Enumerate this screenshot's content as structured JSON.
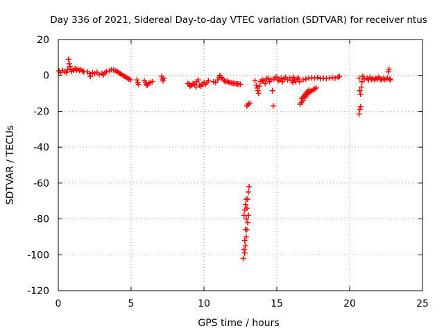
{
  "chart_data": {
    "type": "scatter",
    "title": "Day 336 of 2021, Sidereal Day-to-day VTEC variation (SDTVAR) for receiver ntus",
    "xlabel": "GPS time / hours",
    "ylabel": "SDTVAR / TECUs",
    "xlim": [
      0,
      25
    ],
    "ylim": [
      -120,
      20
    ],
    "xticks": [
      "0",
      "5",
      "10",
      "15",
      "20",
      "25"
    ],
    "yticks": [
      "20",
      "0",
      "-20",
      "-40",
      "-60",
      "-80",
      "-100",
      "-120"
    ],
    "grid": true,
    "marker": "plus",
    "series": [
      {
        "name": "SDTVAR",
        "color": "#ff0000",
        "points": [
          [
            0.05,
            2.5
          ],
          [
            0.15,
            1.5
          ],
          [
            0.3,
            2.8
          ],
          [
            0.45,
            2.0
          ],
          [
            0.55,
            1.6
          ],
          [
            0.65,
            3.2
          ],
          [
            0.7,
            9.0
          ],
          [
            0.75,
            6.5
          ],
          [
            0.8,
            5.0
          ],
          [
            0.85,
            3.5
          ],
          [
            0.9,
            2.2
          ],
          [
            1.05,
            2.8
          ],
          [
            1.15,
            3.8
          ],
          [
            1.25,
            3.0
          ],
          [
            1.35,
            3.5
          ],
          [
            1.45,
            2.7
          ],
          [
            1.55,
            3.2
          ],
          [
            1.65,
            2.5
          ],
          [
            1.75,
            2.0
          ],
          [
            2.0,
            2.0
          ],
          [
            2.15,
            1.0
          ],
          [
            2.2,
            -0.5
          ],
          [
            2.35,
            1.5
          ],
          [
            2.5,
            1.0
          ],
          [
            2.65,
            1.8
          ],
          [
            2.8,
            0.5
          ],
          [
            3.0,
            1.2
          ],
          [
            3.1,
            0.3
          ],
          [
            3.2,
            1.5
          ],
          [
            3.3,
            2.2
          ],
          [
            3.5,
            2.5
          ],
          [
            3.65,
            3.2
          ],
          [
            3.8,
            3.0
          ],
          [
            3.95,
            2.6
          ],
          [
            4.05,
            2.0
          ],
          [
            4.15,
            1.5
          ],
          [
            4.25,
            1.0
          ],
          [
            4.35,
            0.5
          ],
          [
            4.45,
            0.0
          ],
          [
            4.55,
            -0.5
          ],
          [
            4.65,
            -1.0
          ],
          [
            4.75,
            -1.5
          ],
          [
            4.85,
            -2.0
          ],
          [
            4.95,
            -2.5
          ],
          [
            5.4,
            -2.5
          ],
          [
            5.45,
            -4.0
          ],
          [
            5.5,
            -5.0
          ],
          [
            5.9,
            -3.0
          ],
          [
            6.0,
            -4.0
          ],
          [
            6.05,
            -5.0
          ],
          [
            6.1,
            -5.5
          ],
          [
            6.2,
            -4.5
          ],
          [
            6.3,
            -4.0
          ],
          [
            6.45,
            -3.5
          ],
          [
            7.1,
            -0.5
          ],
          [
            7.15,
            -2.0
          ],
          [
            7.2,
            -3.0
          ],
          [
            7.25,
            -1.5
          ],
          [
            8.9,
            -4.5
          ],
          [
            9.0,
            -5.0
          ],
          [
            9.05,
            -6.0
          ],
          [
            9.15,
            -5.5
          ],
          [
            9.25,
            -4.5
          ],
          [
            9.35,
            -5.0
          ],
          [
            9.45,
            -6.5
          ],
          [
            9.5,
            -3.5
          ],
          [
            9.6,
            -2.5
          ],
          [
            9.7,
            -5.5
          ],
          [
            9.8,
            -6.0
          ],
          [
            9.9,
            -4.8
          ],
          [
            10.0,
            -4.0
          ],
          [
            10.1,
            -5.0
          ],
          [
            10.2,
            -4.0
          ],
          [
            10.3,
            -3.0
          ],
          [
            10.65,
            -3.5
          ],
          [
            10.8,
            -4.0
          ],
          [
            10.95,
            -2.5
          ],
          [
            11.05,
            -1.0
          ],
          [
            11.1,
            0.0
          ],
          [
            11.2,
            -1.2
          ],
          [
            11.3,
            -2.0
          ],
          [
            11.4,
            -3.0
          ],
          [
            11.5,
            -3.5
          ],
          [
            11.6,
            -3.2
          ],
          [
            11.7,
            -3.8
          ],
          [
            11.8,
            -4.0
          ],
          [
            11.9,
            -4.2
          ],
          [
            12.0,
            -4.4
          ],
          [
            12.1,
            -4.5
          ],
          [
            12.2,
            -4.6
          ],
          [
            12.3,
            -4.7
          ],
          [
            12.4,
            -4.8
          ],
          [
            12.5,
            -5.0
          ],
          [
            12.95,
            -17.0
          ],
          [
            13.05,
            -16.0
          ],
          [
            13.15,
            -15.5
          ],
          [
            12.7,
            -102.0
          ],
          [
            12.75,
            -97.0
          ],
          [
            12.8,
            -92.0
          ],
          [
            12.85,
            -86.0
          ],
          [
            12.9,
            -80.0
          ],
          [
            12.95,
            -74.0
          ],
          [
            13.0,
            -69.0
          ],
          [
            13.05,
            -65.0
          ],
          [
            13.1,
            -62.0
          ],
          [
            12.8,
            -99.0
          ],
          [
            12.85,
            -95.0
          ],
          [
            12.9,
            -90.0
          ],
          [
            12.95,
            -86.0
          ],
          [
            13.0,
            -82.0
          ],
          [
            13.05,
            -78.0
          ],
          [
            12.75,
            -78.0
          ],
          [
            12.8,
            -75.0
          ],
          [
            12.85,
            -72.0
          ],
          [
            12.9,
            -69.0
          ],
          [
            13.5,
            -3.0
          ],
          [
            13.6,
            -5.5
          ],
          [
            13.65,
            -7.0
          ],
          [
            13.7,
            -8.5
          ],
          [
            13.75,
            -10.0
          ],
          [
            13.8,
            -6.0
          ],
          [
            13.9,
            -3.5
          ],
          [
            14.0,
            -2.5
          ],
          [
            14.1,
            -3.0
          ],
          [
            14.2,
            -4.5
          ],
          [
            14.3,
            -2.0
          ],
          [
            14.4,
            -1.5
          ],
          [
            14.5,
            -3.5
          ],
          [
            14.6,
            -2.5
          ],
          [
            14.7,
            -8.5
          ],
          [
            14.75,
            -17.0
          ],
          [
            14.8,
            -2.0
          ],
          [
            14.9,
            -1.0
          ],
          [
            15.0,
            -1.0
          ],
          [
            15.1,
            -3.0
          ],
          [
            15.2,
            -2.5
          ],
          [
            15.3,
            -1.5
          ],
          [
            15.4,
            -3.5
          ],
          [
            15.5,
            -2.0
          ],
          [
            15.6,
            -1.0
          ],
          [
            15.75,
            -2.5
          ],
          [
            15.9,
            -1.5
          ],
          [
            16.05,
            -3.0
          ],
          [
            16.1,
            -4.0
          ],
          [
            16.15,
            -1.0
          ],
          [
            16.2,
            -2.5
          ],
          [
            16.3,
            -3.5
          ],
          [
            16.4,
            -2.0
          ],
          [
            16.5,
            -1.5
          ],
          [
            16.55,
            -3.5
          ],
          [
            16.6,
            -16.0
          ],
          [
            16.7,
            -15.0
          ],
          [
            16.8,
            -14.0
          ],
          [
            16.9,
            -12.5
          ],
          [
            17.0,
            -11.5
          ],
          [
            17.1,
            -10.5
          ],
          [
            17.2,
            -9.5
          ],
          [
            17.3,
            -9.0
          ],
          [
            17.4,
            -8.5
          ],
          [
            17.5,
            -8.0
          ],
          [
            17.6,
            -7.5
          ],
          [
            17.7,
            -7.0
          ],
          [
            16.7,
            -13.0
          ],
          [
            16.8,
            -12.0
          ],
          [
            16.9,
            -11.0
          ],
          [
            17.0,
            -10.0
          ],
          [
            17.1,
            -9.0
          ],
          [
            17.2,
            -8.2
          ],
          [
            16.8,
            -2.5
          ],
          [
            17.0,
            -2.0
          ],
          [
            17.2,
            -1.5
          ],
          [
            17.4,
            -1.3
          ],
          [
            17.6,
            -1.5
          ],
          [
            17.8,
            -1.2
          ],
          [
            18.0,
            -1.8
          ],
          [
            18.2,
            -1.5
          ],
          [
            18.4,
            -1.8
          ],
          [
            18.6,
            -1.5
          ],
          [
            18.8,
            -1.2
          ],
          [
            19.0,
            -1.5
          ],
          [
            19.2,
            -1.0
          ],
          [
            19.3,
            -0.5
          ],
          [
            20.65,
            -1.5
          ],
          [
            20.7,
            -8.5
          ],
          [
            20.75,
            -10.5
          ],
          [
            20.8,
            -6.5
          ],
          [
            20.85,
            -3.5
          ],
          [
            20.9,
            -0.5
          ],
          [
            20.65,
            -21.5
          ],
          [
            20.7,
            -19.0
          ],
          [
            20.75,
            -17.5
          ],
          [
            21.0,
            -2.0
          ],
          [
            21.2,
            -1.5
          ],
          [
            21.3,
            -2.5
          ],
          [
            21.4,
            -1.0
          ],
          [
            21.5,
            -2.2
          ],
          [
            21.6,
            -1.8
          ],
          [
            21.7,
            -2.5
          ],
          [
            21.8,
            -1.5
          ],
          [
            21.9,
            -2.0
          ],
          [
            22.0,
            -1.0
          ],
          [
            22.1,
            -2.0
          ],
          [
            22.2,
            -2.5
          ],
          [
            22.3,
            -1.8
          ],
          [
            22.4,
            -2.2
          ],
          [
            22.5,
            -2.0
          ],
          [
            22.6,
            -1.5
          ],
          [
            22.65,
            2.0
          ],
          [
            22.7,
            3.5
          ],
          [
            22.75,
            -2.0
          ],
          [
            22.8,
            -2.5
          ]
        ]
      }
    ]
  }
}
